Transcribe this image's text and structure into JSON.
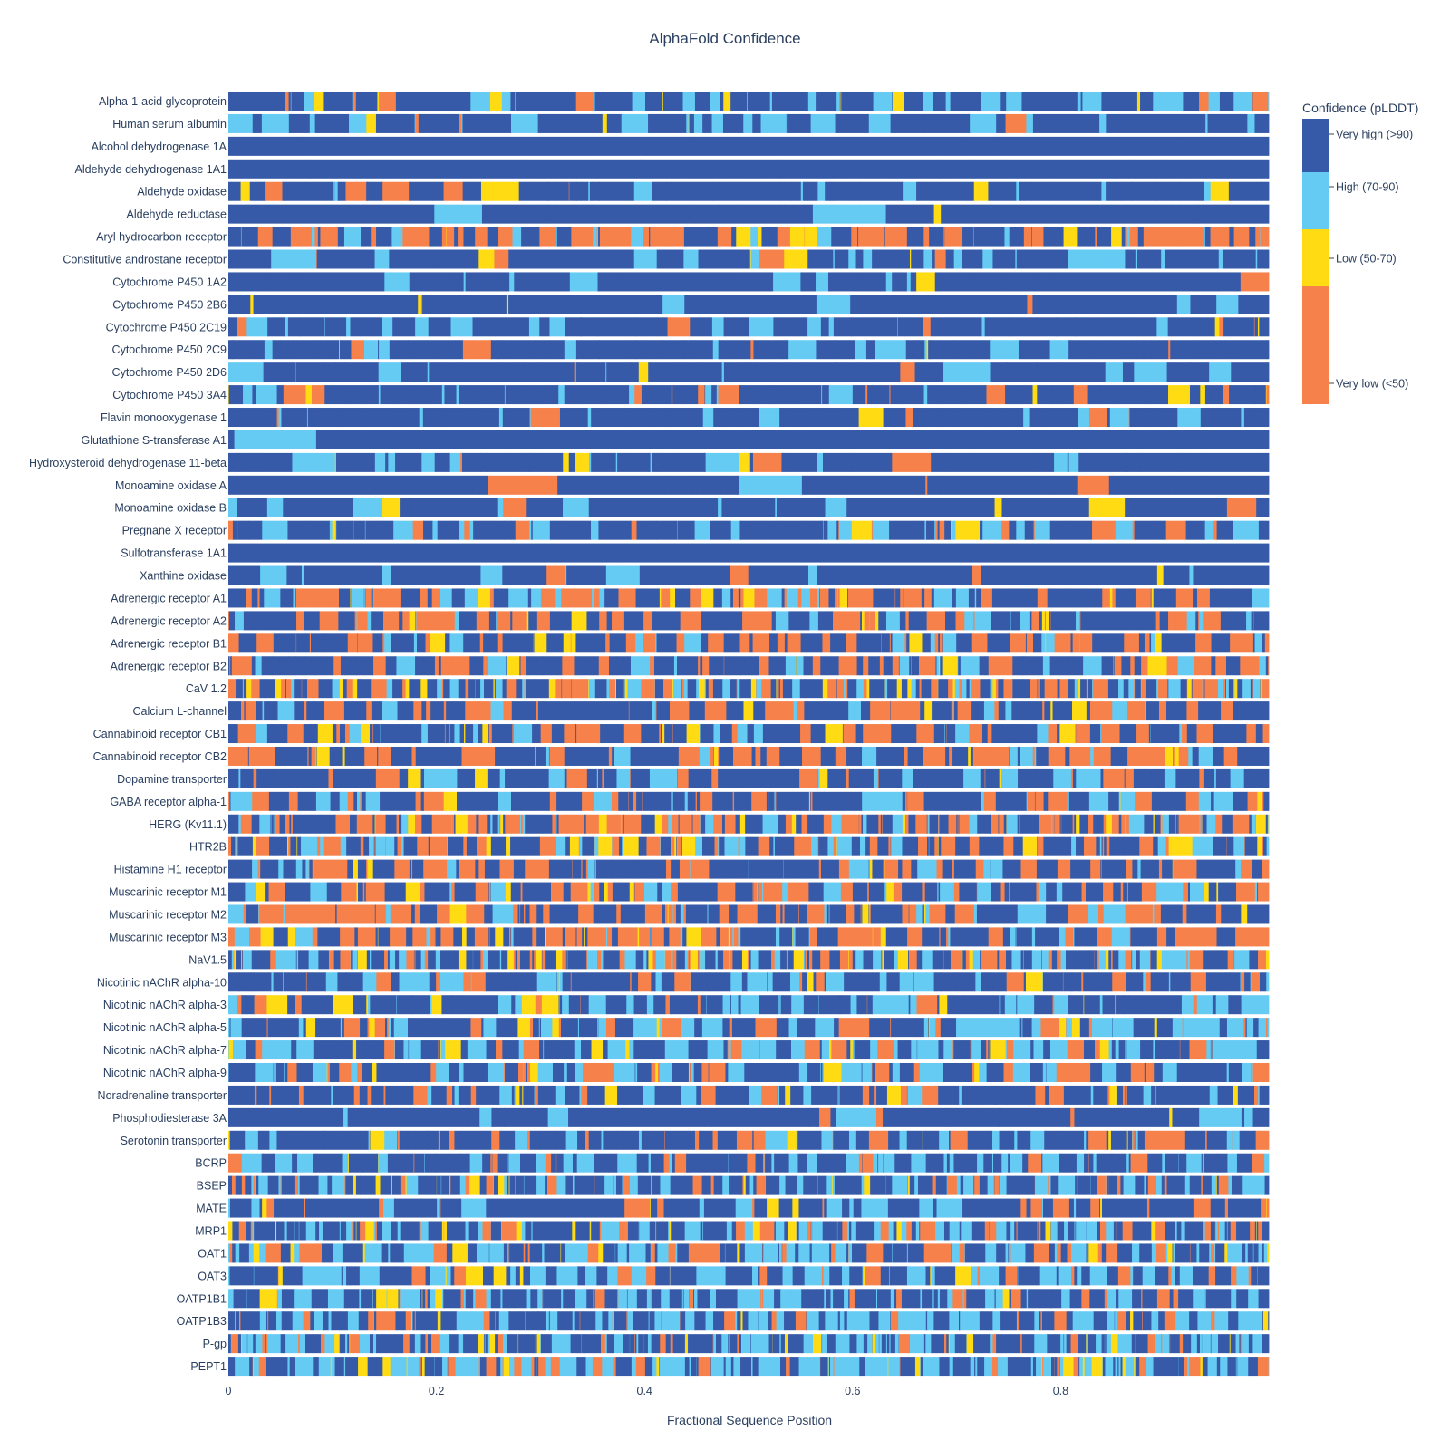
{
  "chart_data": {
    "type": "heatmap",
    "title": "AlphaFold Confidence",
    "xlabel": "Fractional Sequence Position",
    "xlim": [
      0,
      1
    ],
    "x_ticks": [
      "0",
      "0.2",
      "0.4",
      "0.6",
      "0.8"
    ],
    "x_tick_values": [
      0,
      0.2,
      0.4,
      0.6,
      0.8
    ],
    "proteins": [
      "Alpha-1-acid glycoprotein",
      "Human serum albumin",
      "Alcohol dehydrogenase 1A",
      "Aldehyde dehydrogenase 1A1",
      "Aldehyde oxidase",
      "Aldehyde reductase",
      "Aryl hydrocarbon receptor",
      "Constitutive androstane receptor",
      "Cytochrome P450 1A2",
      "Cytochrome P450 2B6",
      "Cytochrome P450 2C19",
      "Cytochrome P450 2C9",
      "Cytochrome P450 2D6",
      "Cytochrome P450 3A4",
      "Flavin monooxygenase 1",
      "Glutathione S-transferase A1",
      "Hydroxysteroid dehydrogenase 11-beta",
      "Monoamine oxidase A",
      "Monoamine oxidase B",
      "Pregnane X receptor",
      "Sulfotransferase 1A1",
      "Xanthine oxidase",
      "Adrenergic receptor A1",
      "Adrenergic receptor A2",
      "Adrenergic receptor B1",
      "Adrenergic receptor B2",
      "CaV 1.2",
      "Calcium L-channel",
      "Cannabinoid receptor CB1",
      "Cannabinoid receptor CB2",
      "Dopamine transporter",
      "GABA receptor alpha-1",
      "HERG (Kv11.1)",
      "HTR2B",
      "Histamine H1 receptor",
      "Muscarinic receptor M1",
      "Muscarinic receptor M2",
      "Muscarinic receptor M3",
      "NaV1.5",
      "Nicotinic nAChR alpha-10",
      "Nicotinic nAChR alpha-3",
      "Nicotinic nAChR alpha-5",
      "Nicotinic nAChR alpha-7",
      "Nicotinic nAChR alpha-9",
      "Noradrenaline transporter",
      "Phosphodiesterase 3A",
      "Serotonin transporter",
      "BCRP",
      "BSEP",
      "MATE",
      "MRP1",
      "OAT1",
      "OAT3",
      "OATP1B1",
      "OATP1B3",
      "P-gp",
      "PEPT1"
    ],
    "confidence_profile": [
      {
        "name": "Alpha-1-acid glycoprotein",
        "p_very_high": 0.62,
        "p_high": 0.22,
        "p_low": 0.07,
        "segments": 140
      },
      {
        "name": "Human serum albumin",
        "p_very_high": 0.72,
        "p_high": 0.2,
        "p_low": 0.03,
        "segments": 120
      },
      {
        "name": "Alcohol dehydrogenase 1A",
        "p_very_high": 0.99,
        "p_high": 0.01,
        "p_low": 0.0,
        "segments": 6
      },
      {
        "name": "Aldehyde dehydrogenase 1A1",
        "p_very_high": 0.95,
        "p_high": 0.02,
        "p_low": 0.01,
        "segments": 22
      },
      {
        "name": "Aldehyde oxidase",
        "p_very_high": 0.8,
        "p_high": 0.1,
        "p_low": 0.04,
        "segments": 130
      },
      {
        "name": "Aldehyde reductase",
        "p_very_high": 0.9,
        "p_high": 0.08,
        "p_low": 0.01,
        "segments": 25
      },
      {
        "name": "Aryl hydrocarbon receptor",
        "p_very_high": 0.3,
        "p_high": 0.12,
        "p_low": 0.08,
        "segments": 160
      },
      {
        "name": "Constitutive androstane receptor",
        "p_very_high": 0.7,
        "p_high": 0.18,
        "p_low": 0.06,
        "segments": 120
      },
      {
        "name": "Cytochrome P450 1A2",
        "p_very_high": 0.85,
        "p_high": 0.1,
        "p_low": 0.02,
        "segments": 70
      },
      {
        "name": "Cytochrome P450 2B6",
        "p_very_high": 0.82,
        "p_high": 0.12,
        "p_low": 0.02,
        "segments": 80
      },
      {
        "name": "Cytochrome P450 2C19",
        "p_very_high": 0.78,
        "p_high": 0.16,
        "p_low": 0.03,
        "segments": 110
      },
      {
        "name": "Cytochrome P450 2C9",
        "p_very_high": 0.78,
        "p_high": 0.15,
        "p_low": 0.03,
        "segments": 110
      },
      {
        "name": "Cytochrome P450 2D6",
        "p_very_high": 0.82,
        "p_high": 0.12,
        "p_low": 0.02,
        "segments": 90
      },
      {
        "name": "Cytochrome P450 3A4",
        "p_very_high": 0.72,
        "p_high": 0.14,
        "p_low": 0.05,
        "segments": 130
      },
      {
        "name": "Flavin monooxygenase 1",
        "p_very_high": 0.8,
        "p_high": 0.14,
        "p_low": 0.02,
        "segments": 100
      },
      {
        "name": "Glutathione S-transferase A1",
        "p_very_high": 0.96,
        "p_high": 0.03,
        "p_low": 0.0,
        "segments": 10
      },
      {
        "name": "Hydroxysteroid dehydrogenase 11-beta",
        "p_very_high": 0.78,
        "p_high": 0.15,
        "p_low": 0.04,
        "segments": 90
      },
      {
        "name": "Monoamine oxidase A",
        "p_very_high": 0.92,
        "p_high": 0.03,
        "p_low": 0.01,
        "segments": 40
      },
      {
        "name": "Monoamine oxidase B",
        "p_very_high": 0.82,
        "p_high": 0.12,
        "p_low": 0.03,
        "segments": 80
      },
      {
        "name": "Pregnane X receptor",
        "p_very_high": 0.55,
        "p_high": 0.2,
        "p_low": 0.06,
        "segments": 130
      },
      {
        "name": "Sulfotransferase 1A1",
        "p_very_high": 0.96,
        "p_high": 0.02,
        "p_low": 0.01,
        "segments": 15
      },
      {
        "name": "Xanthine oxidase",
        "p_very_high": 0.85,
        "p_high": 0.12,
        "p_low": 0.01,
        "segments": 80
      },
      {
        "name": "Adrenergic receptor A1",
        "p_very_high": 0.5,
        "p_high": 0.12,
        "p_low": 0.05,
        "segments": 170
      },
      {
        "name": "Adrenergic receptor A2",
        "p_very_high": 0.45,
        "p_high": 0.13,
        "p_low": 0.05,
        "segments": 170
      },
      {
        "name": "Adrenergic receptor B1",
        "p_very_high": 0.48,
        "p_high": 0.12,
        "p_low": 0.07,
        "segments": 180
      },
      {
        "name": "Adrenergic receptor B2",
        "p_very_high": 0.5,
        "p_high": 0.14,
        "p_low": 0.06,
        "segments": 160
      },
      {
        "name": "CaV 1.2",
        "p_very_high": 0.45,
        "p_high": 0.2,
        "p_low": 0.1,
        "segments": 300
      },
      {
        "name": "Calcium L-channel",
        "p_very_high": 0.45,
        "p_high": 0.12,
        "p_low": 0.05,
        "segments": 140
      },
      {
        "name": "Cannabinoid receptor CB1",
        "p_very_high": 0.55,
        "p_high": 0.14,
        "p_low": 0.06,
        "segments": 160
      },
      {
        "name": "Cannabinoid receptor CB2",
        "p_very_high": 0.5,
        "p_high": 0.12,
        "p_low": 0.06,
        "segments": 150
      },
      {
        "name": "Dopamine transporter",
        "p_very_high": 0.65,
        "p_high": 0.15,
        "p_low": 0.03,
        "segments": 150
      },
      {
        "name": "GABA receptor alpha-1",
        "p_very_high": 0.55,
        "p_high": 0.16,
        "p_low": 0.05,
        "segments": 150
      },
      {
        "name": "HERG (Kv11.1)",
        "p_very_high": 0.4,
        "p_high": 0.18,
        "p_low": 0.08,
        "segments": 280
      },
      {
        "name": "HTR2B",
        "p_very_high": 0.42,
        "p_high": 0.14,
        "p_low": 0.08,
        "segments": 200
      },
      {
        "name": "Histamine H1 receptor",
        "p_very_high": 0.5,
        "p_high": 0.14,
        "p_low": 0.05,
        "segments": 150
      },
      {
        "name": "Muscarinic receptor M1",
        "p_very_high": 0.5,
        "p_high": 0.14,
        "p_low": 0.05,
        "segments": 160
      },
      {
        "name": "Muscarinic receptor M2",
        "p_very_high": 0.45,
        "p_high": 0.12,
        "p_low": 0.06,
        "segments": 160
      },
      {
        "name": "Muscarinic receptor M3",
        "p_very_high": 0.45,
        "p_high": 0.12,
        "p_low": 0.06,
        "segments": 160
      },
      {
        "name": "NaV1.5",
        "p_very_high": 0.42,
        "p_high": 0.24,
        "p_low": 0.1,
        "segments": 320
      },
      {
        "name": "Nicotinic nAChR alpha-10",
        "p_very_high": 0.52,
        "p_high": 0.3,
        "p_low": 0.04,
        "segments": 160
      },
      {
        "name": "Nicotinic nAChR alpha-3",
        "p_very_high": 0.55,
        "p_high": 0.28,
        "p_low": 0.04,
        "segments": 160
      },
      {
        "name": "Nicotinic nAChR alpha-5",
        "p_very_high": 0.45,
        "p_high": 0.35,
        "p_low": 0.05,
        "segments": 160
      },
      {
        "name": "Nicotinic nAChR alpha-7",
        "p_very_high": 0.45,
        "p_high": 0.33,
        "p_low": 0.06,
        "segments": 170
      },
      {
        "name": "Nicotinic nAChR alpha-9",
        "p_very_high": 0.5,
        "p_high": 0.3,
        "p_low": 0.05,
        "segments": 170
      },
      {
        "name": "Noradrenaline transporter",
        "p_very_high": 0.6,
        "p_high": 0.2,
        "p_low": 0.05,
        "segments": 180
      },
      {
        "name": "Phosphodiesterase 3A",
        "p_very_high": 0.82,
        "p_high": 0.1,
        "p_low": 0.03,
        "segments": 70
      },
      {
        "name": "Serotonin transporter",
        "p_very_high": 0.62,
        "p_high": 0.18,
        "p_low": 0.04,
        "segments": 150
      },
      {
        "name": "BCRP",
        "p_very_high": 0.58,
        "p_high": 0.28,
        "p_low": 0.04,
        "segments": 180
      },
      {
        "name": "BSEP",
        "p_very_high": 0.52,
        "p_high": 0.3,
        "p_low": 0.06,
        "segments": 300
      },
      {
        "name": "MATE",
        "p_very_high": 0.7,
        "p_high": 0.14,
        "p_low": 0.03,
        "segments": 130
      },
      {
        "name": "MRP1",
        "p_very_high": 0.5,
        "p_high": 0.3,
        "p_low": 0.07,
        "segments": 300
      },
      {
        "name": "OAT1",
        "p_very_high": 0.4,
        "p_high": 0.4,
        "p_low": 0.07,
        "segments": 200
      },
      {
        "name": "OAT3",
        "p_very_high": 0.45,
        "p_high": 0.38,
        "p_low": 0.05,
        "segments": 180
      },
      {
        "name": "OATP1B1",
        "p_very_high": 0.55,
        "p_high": 0.3,
        "p_low": 0.04,
        "segments": 220
      },
      {
        "name": "OATP1B3",
        "p_very_high": 0.5,
        "p_high": 0.32,
        "p_low": 0.05,
        "segments": 220
      },
      {
        "name": "P-gp",
        "p_very_high": 0.5,
        "p_high": 0.32,
        "p_low": 0.06,
        "segments": 320
      },
      {
        "name": "PEPT1",
        "p_very_high": 0.42,
        "p_high": 0.4,
        "p_low": 0.06,
        "segments": 280
      }
    ],
    "colorbar": {
      "title": "Confidence (pLDDT)",
      "categories": [
        {
          "label": "Very high (>90)",
          "color": "#365aa8"
        },
        {
          "label": "High (70-90)",
          "color": "#65cbf3"
        },
        {
          "label": "Low (50-70)",
          "color": "#ffdb13"
        },
        {
          "label": "Very low (<50)",
          "color": "#f7814b"
        }
      ]
    },
    "grid": false,
    "legend_position": "right"
  }
}
